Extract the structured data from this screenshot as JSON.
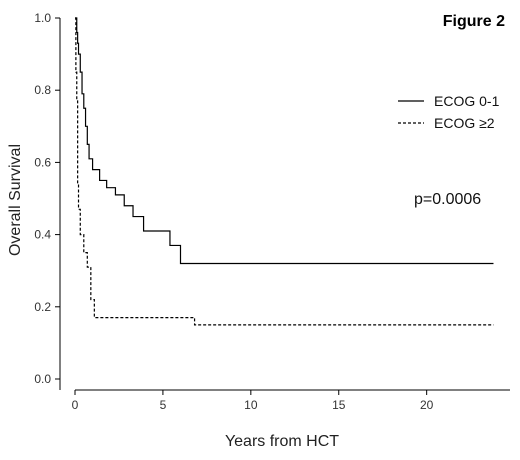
{
  "chart_data": {
    "type": "line",
    "title": "Figure 2",
    "xlabel": "Years from HCT",
    "ylabel": "Overall Survival",
    "xlim": [
      0,
      24
    ],
    "ylim": [
      0,
      1.0
    ],
    "xticks": [
      "0",
      "5",
      "10",
      "15",
      "20"
    ],
    "yticks": [
      "0.0",
      "0.2",
      "0.4",
      "0.6",
      "0.8",
      "1.0"
    ],
    "grid": false,
    "legend_position": "top-right",
    "annotation": "p=0.0006",
    "series": [
      {
        "name": "ECOG 0-1",
        "style": "solid",
        "color": "#000000",
        "x": [
          0,
          0.1,
          0.15,
          0.2,
          0.3,
          0.4,
          0.5,
          0.6,
          0.7,
          0.8,
          1.0,
          1.4,
          1.8,
          2.3,
          2.8,
          3.3,
          3.9,
          5.4,
          6.0,
          23.8
        ],
        "y": [
          1.0,
          0.96,
          0.93,
          0.9,
          0.85,
          0.79,
          0.75,
          0.7,
          0.65,
          0.61,
          0.58,
          0.55,
          0.53,
          0.51,
          0.48,
          0.45,
          0.41,
          0.37,
          0.32,
          0.32
        ]
      },
      {
        "name": "ECOG ≥2",
        "style": "dashed",
        "color": "#000000",
        "x": [
          0,
          0.05,
          0.1,
          0.15,
          0.2,
          0.3,
          0.5,
          0.7,
          0.9,
          1.1,
          6.8,
          23.8
        ],
        "y": [
          1.0,
          0.85,
          0.77,
          0.54,
          0.47,
          0.4,
          0.35,
          0.31,
          0.22,
          0.17,
          0.15,
          0.15
        ]
      }
    ]
  }
}
